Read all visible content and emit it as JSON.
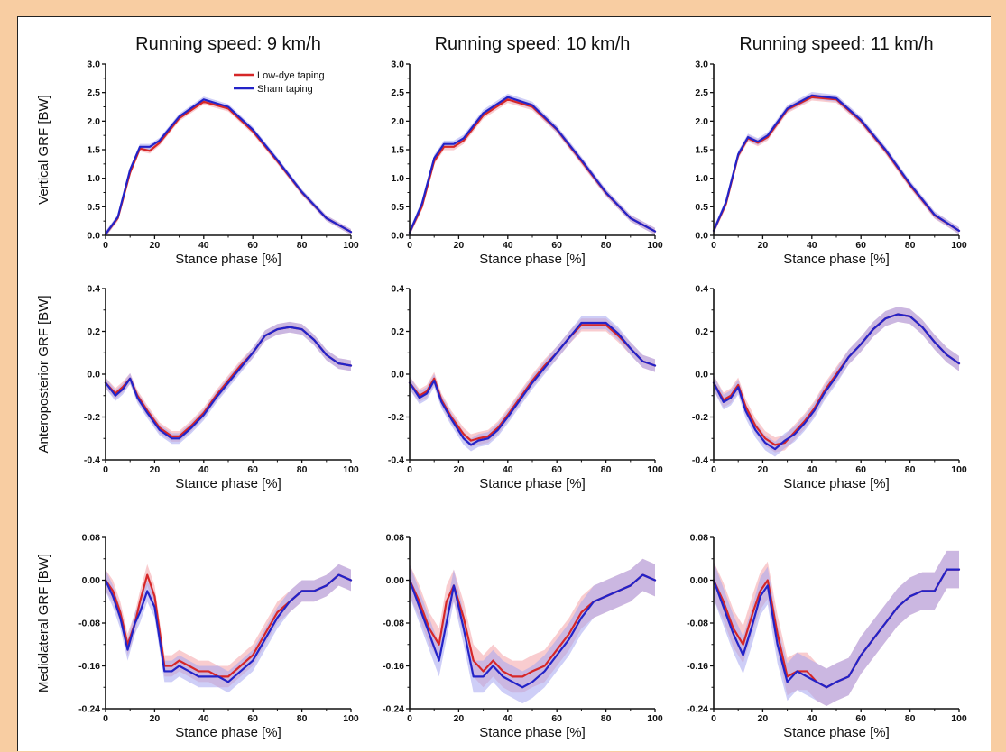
{
  "figure": {
    "column_titles": [
      "Running speed: 9 km/h",
      "Running speed: 10 km/h",
      "Running speed: 11 km/h"
    ],
    "row_ylabels": [
      "Vertical GRF [BW]",
      "Anteroposterior GRF [BW]",
      "Mediolateral GRF [BW]"
    ],
    "xlabel": "Stance phase [%]",
    "legend": [
      {
        "name": "Low-dye taping",
        "color": "#d62728"
      },
      {
        "name": "Sham taping",
        "color": "#2323c8"
      }
    ],
    "band_colors": {
      "low_dye": "#f4a3a8",
      "sham": "#a6a6f0"
    }
  },
  "chart_data": [
    {
      "type": "line",
      "title": "Running speed: 9 km/h",
      "xlabel": "Stance phase [%]",
      "ylabel": "Vertical GRF [BW]",
      "xlim": [
        0,
        100
      ],
      "ylim": [
        0,
        3
      ],
      "xticks": [
        0,
        20,
        40,
        60,
        80,
        100
      ],
      "yticks": [
        0,
        0.5,
        1,
        1.5,
        2,
        2.5,
        3
      ],
      "ytick_labels": [
        "0.0",
        "0.5",
        "1.0",
        "1.5",
        "2.0",
        "2.5",
        "3.0"
      ],
      "legend": "top-right",
      "x": [
        0,
        5,
        10,
        14,
        18,
        22,
        30,
        40,
        50,
        60,
        70,
        80,
        90,
        100
      ],
      "series": [
        {
          "name": "Low-dye taping",
          "values": [
            0.02,
            0.3,
            1.1,
            1.52,
            1.48,
            1.62,
            2.05,
            2.34,
            2.22,
            1.82,
            1.3,
            0.75,
            0.3,
            0.06
          ],
          "sd": 0.05
        },
        {
          "name": "Sham taping",
          "values": [
            0.02,
            0.32,
            1.15,
            1.55,
            1.55,
            1.66,
            2.08,
            2.38,
            2.25,
            1.85,
            1.32,
            0.76,
            0.3,
            0.06
          ],
          "sd": 0.05
        }
      ]
    },
    {
      "type": "line",
      "title": "Running speed: 10 km/h",
      "xlabel": "Stance phase [%]",
      "ylabel": "",
      "xlim": [
        0,
        100
      ],
      "ylim": [
        0,
        3
      ],
      "xticks": [
        0,
        20,
        40,
        60,
        80,
        100
      ],
      "yticks": [
        0,
        0.5,
        1,
        1.5,
        2,
        2.5,
        3
      ],
      "ytick_labels": [
        "0.0",
        "0.5",
        "1.0",
        "1.5",
        "2.0",
        "2.5",
        "3.0"
      ],
      "x": [
        0,
        5,
        10,
        14,
        18,
        22,
        30,
        40,
        50,
        60,
        70,
        80,
        90,
        100
      ],
      "series": [
        {
          "name": "Low-dye taping",
          "values": [
            0.05,
            0.5,
            1.3,
            1.55,
            1.55,
            1.66,
            2.1,
            2.38,
            2.25,
            1.85,
            1.3,
            0.74,
            0.3,
            0.07
          ],
          "sd": 0.06
        },
        {
          "name": "Sham taping",
          "values": [
            0.05,
            0.55,
            1.35,
            1.6,
            1.6,
            1.7,
            2.14,
            2.42,
            2.28,
            1.86,
            1.32,
            0.75,
            0.3,
            0.07
          ],
          "sd": 0.06
        }
      ]
    },
    {
      "type": "line",
      "title": "Running speed: 11 km/h",
      "xlabel": "Stance phase [%]",
      "ylabel": "",
      "xlim": [
        0,
        100
      ],
      "ylim": [
        0,
        3
      ],
      "xticks": [
        0,
        20,
        40,
        60,
        80,
        100
      ],
      "yticks": [
        0,
        0.5,
        1,
        1.5,
        2,
        2.5,
        3
      ],
      "ytick_labels": [
        "0.0",
        "0.5",
        "1.0",
        "1.5",
        "2.0",
        "2.5",
        "3.0"
      ],
      "x": [
        0,
        5,
        10,
        14,
        18,
        22,
        30,
        40,
        50,
        60,
        70,
        80,
        90,
        100
      ],
      "series": [
        {
          "name": "Low-dye taping",
          "values": [
            0.08,
            0.55,
            1.4,
            1.7,
            1.62,
            1.72,
            2.2,
            2.42,
            2.38,
            2.0,
            1.48,
            0.88,
            0.35,
            0.08
          ],
          "sd": 0.06
        },
        {
          "name": "Sham taping",
          "values": [
            0.08,
            0.58,
            1.42,
            1.72,
            1.64,
            1.75,
            2.22,
            2.45,
            2.4,
            2.02,
            1.5,
            0.9,
            0.36,
            0.08
          ],
          "sd": 0.06
        }
      ]
    },
    {
      "type": "line",
      "xlabel": "Stance phase [%]",
      "ylabel": "Anteroposterior GRF [BW]",
      "xlim": [
        0,
        100
      ],
      "ylim": [
        -0.4,
        0.4
      ],
      "xticks": [
        0,
        20,
        40,
        60,
        80,
        100
      ],
      "yticks": [
        -0.4,
        -0.2,
        0,
        0.2,
        0.4
      ],
      "ytick_labels": [
        "-0.4",
        "-0.2",
        "0.0",
        "0.2",
        "0.4"
      ],
      "x": [
        0,
        4,
        7,
        10,
        13,
        17,
        22,
        27,
        30,
        35,
        40,
        45,
        50,
        55,
        60,
        65,
        70,
        75,
        80,
        85,
        90,
        95,
        100
      ],
      "series": [
        {
          "name": "Low-dye taping",
          "values": [
            -0.04,
            -0.09,
            -0.06,
            -0.02,
            -0.1,
            -0.17,
            -0.25,
            -0.29,
            -0.29,
            -0.24,
            -0.18,
            -0.1,
            -0.03,
            0.04,
            0.1,
            0.18,
            0.21,
            0.22,
            0.21,
            0.16,
            0.09,
            0.05,
            0.04
          ],
          "sd": 0.025
        },
        {
          "name": "Sham taping",
          "values": [
            -0.04,
            -0.1,
            -0.07,
            -0.02,
            -0.11,
            -0.18,
            -0.26,
            -0.3,
            -0.3,
            -0.25,
            -0.19,
            -0.11,
            -0.04,
            0.03,
            0.1,
            0.18,
            0.21,
            0.22,
            0.21,
            0.16,
            0.09,
            0.05,
            0.04
          ],
          "sd": 0.025
        }
      ]
    },
    {
      "type": "line",
      "xlabel": "Stance phase [%]",
      "ylabel": "",
      "xlim": [
        0,
        100
      ],
      "ylim": [
        -0.4,
        0.4
      ],
      "xticks": [
        0,
        20,
        40,
        60,
        80,
        100
      ],
      "yticks": [
        -0.4,
        -0.2,
        0,
        0.2,
        0.4
      ],
      "ytick_labels": [
        "-0.4",
        "-0.2",
        "0.0",
        "0.2",
        "0.4"
      ],
      "x": [
        0,
        4,
        7,
        10,
        13,
        17,
        22,
        25,
        28,
        32,
        36,
        40,
        45,
        50,
        55,
        60,
        65,
        70,
        75,
        80,
        85,
        90,
        95,
        100
      ],
      "series": [
        {
          "name": "Low-dye taping",
          "values": [
            -0.04,
            -0.1,
            -0.08,
            -0.02,
            -0.12,
            -0.2,
            -0.28,
            -0.31,
            -0.3,
            -0.29,
            -0.25,
            -0.19,
            -0.11,
            -0.03,
            0.04,
            0.1,
            0.17,
            0.23,
            0.23,
            0.23,
            0.18,
            0.12,
            0.06,
            0.04
          ],
          "sd": 0.03
        },
        {
          "name": "Sham taping",
          "values": [
            -0.04,
            -0.11,
            -0.09,
            -0.03,
            -0.13,
            -0.21,
            -0.3,
            -0.33,
            -0.31,
            -0.3,
            -0.26,
            -0.2,
            -0.12,
            -0.04,
            0.03,
            0.1,
            0.17,
            0.24,
            0.24,
            0.24,
            0.19,
            0.12,
            0.06,
            0.04
          ],
          "sd": 0.03
        }
      ]
    },
    {
      "type": "line",
      "xlabel": "Stance phase [%]",
      "ylabel": "",
      "xlim": [
        0,
        100
      ],
      "ylim": [
        -0.4,
        0.4
      ],
      "xticks": [
        0,
        20,
        40,
        60,
        80,
        100
      ],
      "yticks": [
        -0.4,
        -0.2,
        0,
        0.2,
        0.4
      ],
      "ytick_labels": [
        "-0.4",
        "-0.2",
        "0.0",
        "0.2",
        "0.4"
      ],
      "x": [
        0,
        4,
        7,
        10,
        13,
        17,
        21,
        25,
        29,
        33,
        37,
        41,
        45,
        50,
        55,
        60,
        65,
        70,
        75,
        80,
        85,
        90,
        95,
        100
      ],
      "series": [
        {
          "name": "Low-dye taping",
          "values": [
            -0.04,
            -0.12,
            -0.1,
            -0.05,
            -0.15,
            -0.24,
            -0.3,
            -0.33,
            -0.32,
            -0.27,
            -0.22,
            -0.16,
            -0.08,
            0.0,
            0.08,
            0.14,
            0.21,
            0.26,
            0.28,
            0.27,
            0.22,
            0.15,
            0.09,
            0.05
          ],
          "sd": 0.035
        },
        {
          "name": "Sham taping",
          "values": [
            -0.04,
            -0.13,
            -0.11,
            -0.06,
            -0.17,
            -0.26,
            -0.32,
            -0.35,
            -0.31,
            -0.28,
            -0.23,
            -0.17,
            -0.09,
            -0.01,
            0.08,
            0.14,
            0.21,
            0.26,
            0.28,
            0.27,
            0.22,
            0.15,
            0.09,
            0.05
          ],
          "sd": 0.035
        }
      ]
    },
    {
      "type": "line",
      "xlabel": "Stance phase [%]",
      "ylabel": "Mediolateral GRF [BW]",
      "xlim": [
        0,
        100
      ],
      "ylim": [
        -0.24,
        0.08
      ],
      "xticks": [
        0,
        20,
        40,
        60,
        80,
        100
      ],
      "yticks": [
        -0.24,
        -0.16,
        -0.08,
        0,
        0.08
      ],
      "ytick_labels": [
        "-0.24",
        "-0.16",
        "-0.08",
        "0.00",
        "0.08"
      ],
      "x": [
        0,
        3,
        6,
        9,
        12,
        14,
        17,
        20,
        24,
        27,
        30,
        34,
        38,
        42,
        46,
        50,
        55,
        60,
        65,
        70,
        75,
        80,
        85,
        90,
        95,
        100
      ],
      "series": [
        {
          "name": "Low-dye taping",
          "values": [
            0.0,
            -0.02,
            -0.06,
            -0.12,
            -0.08,
            -0.04,
            0.01,
            -0.03,
            -0.16,
            -0.16,
            -0.15,
            -0.16,
            -0.17,
            -0.17,
            -0.18,
            -0.18,
            -0.16,
            -0.14,
            -0.1,
            -0.06,
            -0.04,
            -0.02,
            -0.02,
            -0.01,
            0.01,
            0.0
          ],
          "sd": 0.02
        },
        {
          "name": "Sham taping",
          "values": [
            0.0,
            -0.03,
            -0.07,
            -0.13,
            -0.08,
            -0.06,
            -0.02,
            -0.05,
            -0.17,
            -0.17,
            -0.16,
            -0.17,
            -0.18,
            -0.18,
            -0.18,
            -0.19,
            -0.17,
            -0.15,
            -0.11,
            -0.07,
            -0.04,
            -0.02,
            -0.02,
            -0.01,
            0.01,
            0.0
          ],
          "sd": 0.02
        }
      ]
    },
    {
      "type": "line",
      "xlabel": "Stance phase [%]",
      "ylabel": "",
      "xlim": [
        0,
        100
      ],
      "ylim": [
        -0.24,
        0.08
      ],
      "xticks": [
        0,
        20,
        40,
        60,
        80,
        100
      ],
      "yticks": [
        -0.24,
        -0.16,
        -0.08,
        0,
        0.08
      ],
      "ytick_labels": [
        "-0.24",
        "-0.16",
        "-0.08",
        "0.00",
        "0.08"
      ],
      "x": [
        0,
        4,
        8,
        12,
        15,
        18,
        22,
        26,
        30,
        34,
        38,
        42,
        46,
        50,
        55,
        60,
        65,
        70,
        75,
        80,
        85,
        90,
        95,
        100
      ],
      "series": [
        {
          "name": "Low-dye taping",
          "values": [
            0.0,
            -0.04,
            -0.09,
            -0.12,
            -0.04,
            -0.01,
            -0.07,
            -0.15,
            -0.17,
            -0.15,
            -0.17,
            -0.18,
            -0.18,
            -0.17,
            -0.16,
            -0.13,
            -0.1,
            -0.06,
            -0.04,
            -0.03,
            -0.02,
            -0.01,
            0.01,
            0.0
          ],
          "sd": 0.03
        },
        {
          "name": "Sham taping",
          "values": [
            0.0,
            -0.05,
            -0.1,
            -0.15,
            -0.08,
            -0.01,
            -0.09,
            -0.18,
            -0.18,
            -0.16,
            -0.18,
            -0.19,
            -0.2,
            -0.19,
            -0.17,
            -0.14,
            -0.11,
            -0.07,
            -0.04,
            -0.03,
            -0.02,
            -0.01,
            0.01,
            0.0
          ],
          "sd": 0.03
        }
      ]
    },
    {
      "type": "line",
      "xlabel": "Stance phase [%]",
      "ylabel": "",
      "xlim": [
        0,
        100
      ],
      "ylim": [
        -0.24,
        0.08
      ],
      "xticks": [
        0,
        20,
        40,
        60,
        80,
        100
      ],
      "yticks": [
        -0.24,
        -0.16,
        -0.08,
        0,
        0.08
      ],
      "ytick_labels": [
        "-0.24",
        "-0.16",
        "-0.08",
        "0.00",
        "0.08"
      ],
      "x": [
        0,
        4,
        8,
        12,
        16,
        19,
        22,
        26,
        30,
        34,
        38,
        42,
        46,
        50,
        55,
        60,
        65,
        70,
        75,
        80,
        85,
        90,
        95,
        100
      ],
      "series": [
        {
          "name": "Low-dye taping",
          "values": [
            0.0,
            -0.04,
            -0.09,
            -0.12,
            -0.06,
            -0.02,
            0.0,
            -0.1,
            -0.18,
            -0.17,
            -0.17,
            -0.19,
            -0.2,
            -0.19,
            -0.18,
            -0.14,
            -0.11,
            -0.08,
            -0.05,
            -0.03,
            -0.02,
            -0.02,
            0.02,
            0.02
          ],
          "sd": 0.035
        },
        {
          "name": "Sham taping",
          "values": [
            0.0,
            -0.05,
            -0.1,
            -0.14,
            -0.08,
            -0.03,
            -0.01,
            -0.12,
            -0.19,
            -0.17,
            -0.18,
            -0.19,
            -0.2,
            -0.19,
            -0.18,
            -0.14,
            -0.11,
            -0.08,
            -0.05,
            -0.03,
            -0.02,
            -0.02,
            0.02,
            0.02
          ],
          "sd": 0.035
        }
      ]
    }
  ]
}
